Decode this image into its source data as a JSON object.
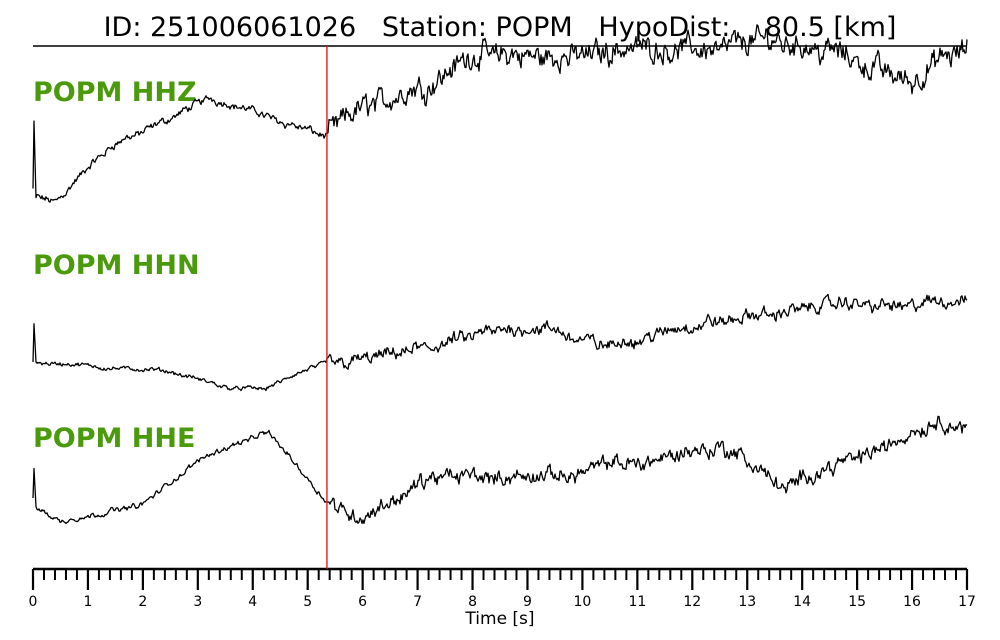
{
  "figure": {
    "title": "ID: 251006061026   Station: POPM   HypoDist:    80.5 [km]"
  },
  "chart_data": {
    "type": "line",
    "title": "ID: 251006061026   Station: POPM   HypoDist:    80.5 [km]",
    "xlabel": "Time [s]",
    "ylabel": "",
    "xlim": [
      0,
      17
    ],
    "xticks": [
      0,
      1,
      2,
      3,
      4,
      5,
      6,
      7,
      8,
      9,
      10,
      11,
      12,
      13,
      14,
      15,
      16,
      17
    ],
    "minor_tick_step": 0.2,
    "pick_time": 5.35,
    "pick_color": "#e41a1c",
    "label_color": "#4a9a0c",
    "trace_color": "#000000",
    "series": [
      {
        "name": "POPM HHZ",
        "envelope": [
          [
            0.0,
            0.15
          ],
          [
            0.02,
            0.72
          ],
          [
            0.05,
            0.08
          ],
          [
            0.4,
            0.05
          ],
          [
            0.8,
            0.22
          ],
          [
            1.5,
            0.5
          ],
          [
            2.2,
            0.62
          ],
          [
            3.2,
            0.85
          ],
          [
            4.2,
            0.72
          ],
          [
            5.35,
            0.55
          ],
          [
            6.0,
            0.78
          ],
          [
            7.2,
            0.96
          ],
          [
            8.0,
            1.18
          ],
          [
            9.5,
            1.15
          ],
          [
            11.0,
            1.25
          ],
          [
            12.0,
            1.22
          ],
          [
            13.5,
            1.3
          ],
          [
            14.5,
            1.22
          ],
          [
            15.5,
            1.05
          ],
          [
            16.0,
            0.98
          ],
          [
            16.5,
            1.12
          ],
          [
            17.0,
            1.2
          ]
        ]
      },
      {
        "name": "POPM HHN",
        "envelope": [
          [
            0.0,
            0.3
          ],
          [
            0.02,
            0.72
          ],
          [
            0.05,
            0.3
          ],
          [
            1.0,
            0.26
          ],
          [
            2.5,
            0.2
          ],
          [
            3.5,
            0.05
          ],
          [
            4.2,
            0.03
          ],
          [
            5.35,
            0.3
          ],
          [
            6.5,
            0.36
          ],
          [
            8.0,
            0.55
          ],
          [
            9.0,
            0.66
          ],
          [
            10.5,
            0.46
          ],
          [
            12.0,
            0.66
          ],
          [
            13.0,
            0.74
          ],
          [
            14.5,
            0.88
          ],
          [
            16.0,
            0.86
          ],
          [
            17.0,
            0.92
          ]
        ]
      },
      {
        "name": "POPM HHE",
        "envelope": [
          [
            0.0,
            0.35
          ],
          [
            0.02,
            0.62
          ],
          [
            0.05,
            0.28
          ],
          [
            0.5,
            0.15
          ],
          [
            1.0,
            0.2
          ],
          [
            2.0,
            0.3
          ],
          [
            3.2,
            0.72
          ],
          [
            4.3,
            0.9
          ],
          [
            5.35,
            0.32
          ],
          [
            6.0,
            0.18
          ],
          [
            7.2,
            0.5
          ],
          [
            8.0,
            0.55
          ],
          [
            9.0,
            0.5
          ],
          [
            11.0,
            0.65
          ],
          [
            12.5,
            0.78
          ],
          [
            13.2,
            0.6
          ],
          [
            13.7,
            0.42
          ],
          [
            14.5,
            0.62
          ],
          [
            15.5,
            0.78
          ],
          [
            16.5,
            1.0
          ],
          [
            17.0,
            0.9
          ]
        ]
      }
    ]
  }
}
